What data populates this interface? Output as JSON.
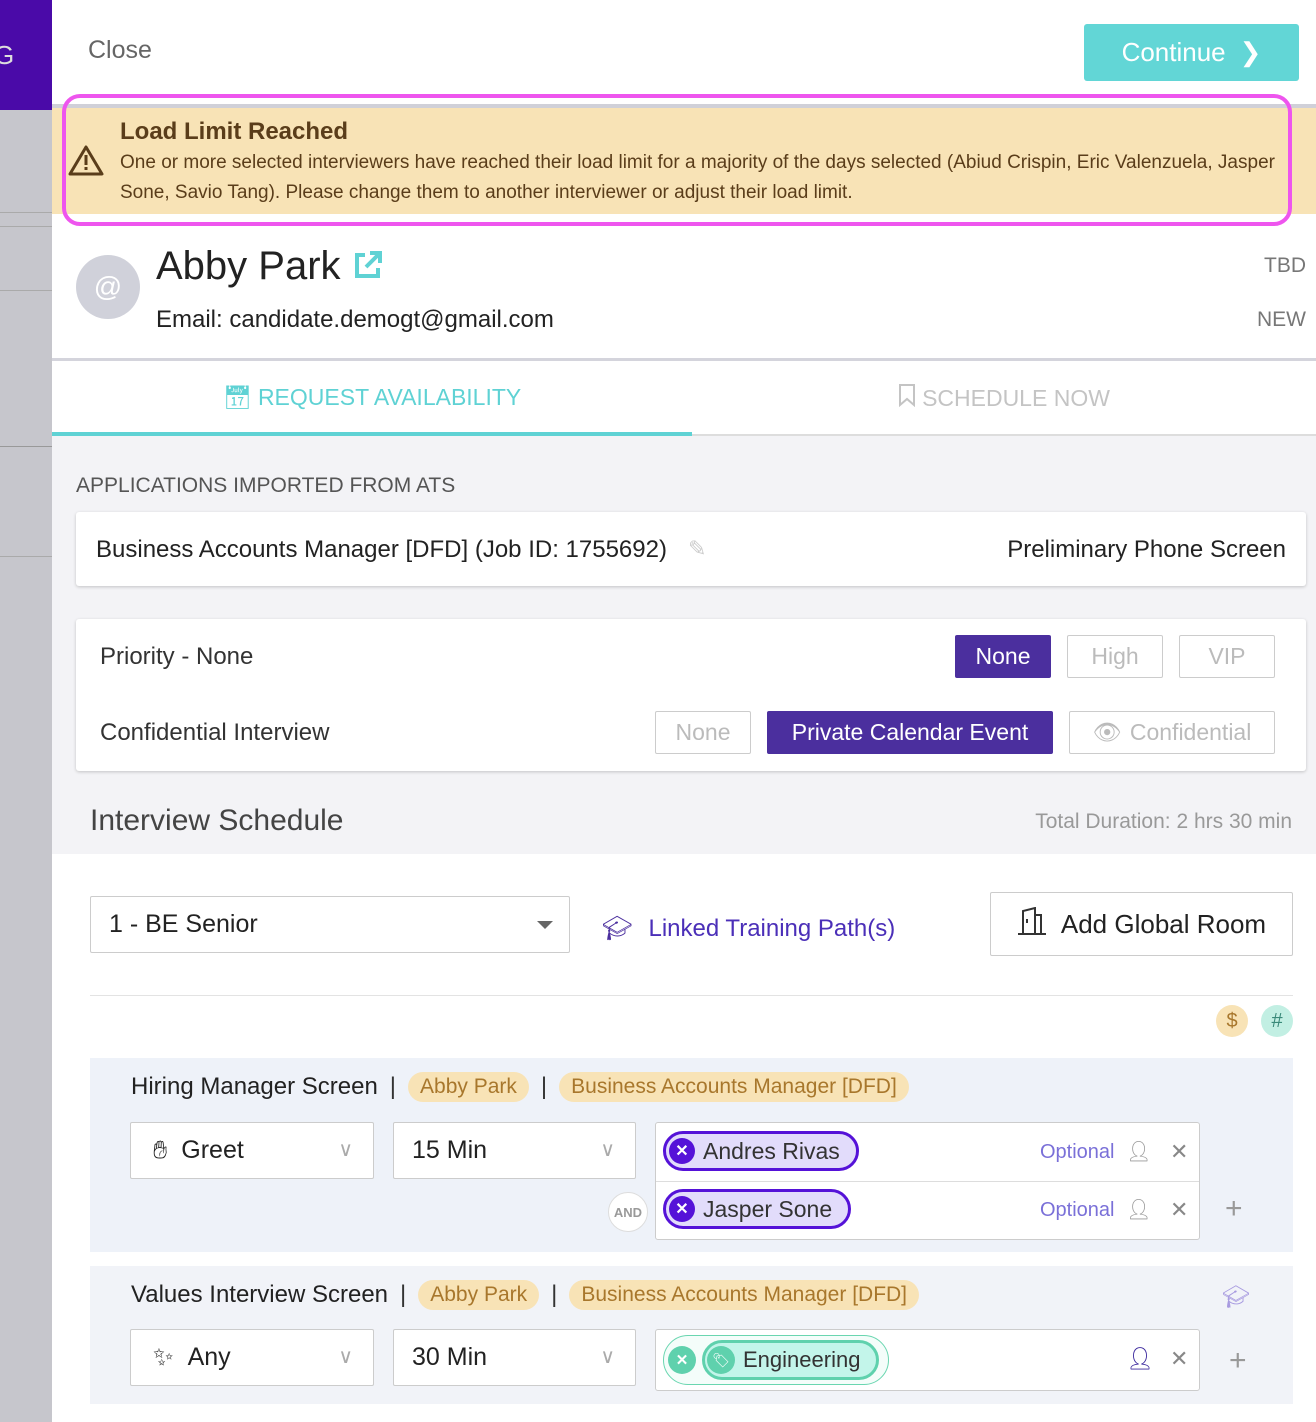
{
  "sidebar": {
    "partial_letter": "G"
  },
  "header": {
    "close_label": "Close",
    "continue_label": "Continue"
  },
  "alert": {
    "title": "Load Limit Reached",
    "message": "One or more selected interviewers have reached their load limit for a majority of the days selected (Abiud Crispin, Eric Valenzuela, Jasper Sone, Savio Tang). Please change them to another interviewer or adjust their load limit."
  },
  "candidate": {
    "avatar": "@",
    "name": "Abby Park",
    "email": "Email: candidate.demogt@gmail.com",
    "status1": "TBD",
    "status2": "NEW"
  },
  "tabs": [
    {
      "label": "REQUEST AVAILABILITY",
      "active": true
    },
    {
      "label": "SCHEDULE NOW",
      "active": false
    }
  ],
  "applications": {
    "label": "APPLICATIONS IMPORTED FROM ATS",
    "job": "Business Accounts Manager [DFD] (Job ID: 1755692)",
    "stage": "Preliminary Phone Screen"
  },
  "priority": {
    "label": "Priority - None",
    "options": [
      "None",
      "High",
      "VIP"
    ],
    "selected": "None"
  },
  "confidential": {
    "label": "Confidential Interview",
    "options": [
      "None",
      "Private Calendar Event",
      "Confidential"
    ],
    "selected": "Private Calendar Event"
  },
  "schedule": {
    "title": "Interview Schedule",
    "total": "Total Duration: 2 hrs 30 min",
    "template": "1 - BE Senior",
    "linked": "Linked Training Path(s)",
    "add_room": "Add Global Room",
    "badge_dollar": "$",
    "badge_hash": "#"
  },
  "interviews": [
    {
      "name": "Hiring Manager Screen",
      "sep": "|",
      "candidate": "Abby Park",
      "job": "Business Accounts Manager [DFD]",
      "type": "Greet",
      "duration": "15 Min",
      "and": "AND",
      "interviewers": [
        {
          "name": "Andres Rivas",
          "optional": "Optional"
        },
        {
          "name": "Jasper Sone",
          "optional": "Optional"
        }
      ]
    },
    {
      "name": "Values Interview Screen",
      "sep": "|",
      "candidate": "Abby Park",
      "job": "Business Accounts Manager [DFD]",
      "type": "Any",
      "duration": "30 Min",
      "pool": "Engineering"
    }
  ],
  "colors": {
    "accent": "#62d6d6",
    "primary": "#4b2f9e",
    "chip": "#5512d8",
    "warning_bg": "#f8e3b6",
    "highlight": "#ee55ee"
  }
}
